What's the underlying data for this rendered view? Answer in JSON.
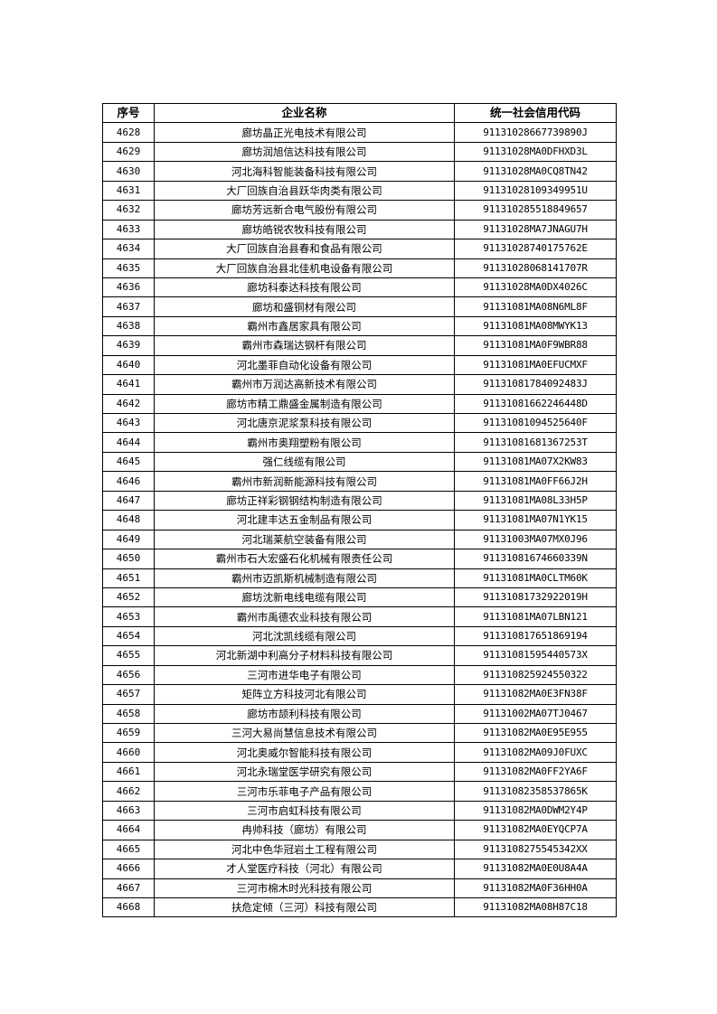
{
  "table": {
    "headers": [
      "序号",
      "企业名称",
      "统一社会信用代码"
    ],
    "rows": [
      [
        "4628",
        "廊坊晶正光电技术有限公司",
        "91131028667739890J"
      ],
      [
        "4629",
        "廊坊润旭信达科技有限公司",
        "91131028MA0DFHXD3L"
      ],
      [
        "4630",
        "河北海科智能装备科技有限公司",
        "91131028MA0CQ8TN42"
      ],
      [
        "4631",
        "大厂回族自治县跃华肉类有限公司",
        "91131028109349951U"
      ],
      [
        "4632",
        "廊坊芳远新合电气股份有限公司",
        "91131028551884965 7"
      ],
      [
        "4633",
        "廊坊皓锐农牧科技有限公司",
        "91131028MA7JNAGU7H"
      ],
      [
        "4634",
        "大厂回族自治县春和食品有限公司",
        "91131028740175762E"
      ],
      [
        "4635",
        "大厂回族自治县北佳机电设备有限公司",
        "91131028068141707R"
      ],
      [
        "4636",
        "廊坊科泰达科技有限公司",
        "91131028MA0DX4026C"
      ],
      [
        "4637",
        "廊坊和盛铜材有限公司",
        "91131081MA08N6ML8F"
      ],
      [
        "4638",
        "霸州市鑫居家具有限公司",
        "91131081MA08MWYK13"
      ],
      [
        "4639",
        "霸州市森瑞达钢杆有限公司",
        "91131081MA0F9WBR88"
      ],
      [
        "4640",
        "河北墨菲自动化设备有限公司",
        "91131081MA0EFUCMXF"
      ],
      [
        "4641",
        "霸州市万润达高新技术有限公司",
        "91131081784092483J"
      ],
      [
        "4642",
        "廊坊市精工鼎盛金属制造有限公司",
        "91131081662246448D"
      ],
      [
        "4643",
        "河北唐京泥浆泵科技有限公司",
        "91131081094525640F"
      ],
      [
        "4644",
        "霸州市奥翔塑粉有限公司",
        "91131081681367253T"
      ],
      [
        "4645",
        "强仁线缆有限公司",
        "91131081MA07X2KW83"
      ],
      [
        "4646",
        "霸州市新润新能源科技有限公司",
        "91131081MA0FF66J2H"
      ],
      [
        "4647",
        "廊坊正祥彩钢钢结构制造有限公司",
        "91131081MA08L33H5P"
      ],
      [
        "4648",
        "河北建丰达五金制品有限公司",
        "91131081MA07N1YK15"
      ],
      [
        "4649",
        "河北瑞莱航空装备有限公司",
        "91131003MA07MX0J96"
      ],
      [
        "4650",
        "霸州市石大宏盛石化机械有限责任公司",
        "91131081674660339N"
      ],
      [
        "4651",
        "霸州市迈凯斯机械制造有限公司",
        "91131081MA0CLTM60K"
      ],
      [
        "4652",
        "廊坊沈新电线电缆有限公司",
        "91131081732922019H"
      ],
      [
        "4653",
        "霸州市禹德农业科技有限公司",
        "91131081MA07LBN121"
      ],
      [
        "4654",
        "河北沈凯线缆有限公司",
        "91131081765186919 4"
      ],
      [
        "4655",
        "河北新湖中利高分子材料科技有限公司",
        "91131081595440573X"
      ],
      [
        "4656",
        "三河市进华电子有限公司",
        "91131082592455032 2"
      ],
      [
        "4657",
        "矩阵立方科技河北有限公司",
        "91131082MA0E3FN38F"
      ],
      [
        "4658",
        "廊坊市颉利科技有限公司",
        "91131002MA07TJ0467"
      ],
      [
        "4659",
        "三河大易尚慧信息技术有限公司",
        "91131082MA0E95E955"
      ],
      [
        "4660",
        "河北奥威尔智能科技有限公司",
        "91131082MA09J0FUXC"
      ],
      [
        "4661",
        "河北永瑞堂医学研究有限公司",
        "91131082MA0FF2YA6F"
      ],
      [
        "4662",
        "三河市乐菲电子产品有限公司",
        "91131082358537865K"
      ],
      [
        "4663",
        "三河市启虹科技有限公司",
        "91131082MA0DWM2Y4P"
      ],
      [
        "4664",
        "冉帅科技（廊坊）有限公司",
        "91131082MA0EYQCP7A"
      ],
      [
        "4665",
        "河北中色华冠岩土工程有限公司",
        "91131082755453 42XX"
      ],
      [
        "4666",
        "才人堂医疗科技（河北）有限公司",
        "91131082MA0E0U8A4A"
      ],
      [
        "4667",
        "三河市棉木时光科技有限公司",
        "91131082MA0F36HH0A"
      ],
      [
        "4668",
        "扶危定倾（三河）科技有限公司",
        "91131082MA08H87C18"
      ]
    ]
  }
}
